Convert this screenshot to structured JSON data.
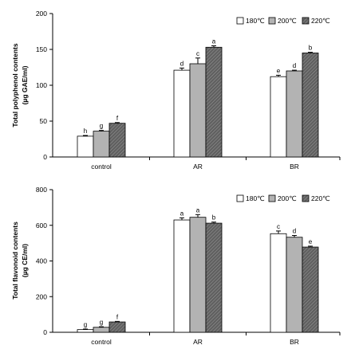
{
  "chart_data": [
    {
      "type": "bar",
      "ylabel_line1": "Total polyphenol contents",
      "ylabel_line2": "(µg GAE/ml)",
      "ylim": [
        0,
        200
      ],
      "yticks": [
        "0",
        "50",
        "100",
        "150",
        "200"
      ],
      "categories": [
        "control",
        "AR",
        "BR"
      ],
      "series": [
        {
          "name": "180℃",
          "values": [
            29,
            121,
            112
          ],
          "errors": [
            1,
            3,
            2
          ],
          "letters": [
            "h",
            "d",
            "e"
          ]
        },
        {
          "name": "200℃",
          "values": [
            36,
            130,
            120
          ],
          "errors": [
            1,
            8,
            1
          ],
          "letters": [
            "g",
            "c",
            "d"
          ]
        },
        {
          "name": "220℃",
          "values": [
            47,
            153,
            145
          ],
          "errors": [
            1,
            2,
            1
          ],
          "letters": [
            "f",
            "a",
            "b"
          ]
        }
      ],
      "legend_position": "top-right",
      "grid": false
    },
    {
      "type": "bar",
      "ylabel_line1": "Total flavonoid contents",
      "ylabel_line2": "(µg CE/ml)",
      "ylim": [
        0,
        800
      ],
      "yticks": [
        "0",
        "200",
        "400",
        "600",
        "800"
      ],
      "categories": [
        "control",
        "AR",
        "BR"
      ],
      "series": [
        {
          "name": "180℃",
          "values": [
            15,
            630,
            553
          ],
          "errors": [
            3,
            12,
            15
          ],
          "letters": [
            "g",
            "a",
            "c"
          ]
        },
        {
          "name": "200℃",
          "values": [
            28,
            645,
            533
          ],
          "errors": [
            3,
            15,
            10
          ],
          "letters": [
            "g",
            "a",
            "d"
          ]
        },
        {
          "name": "220℃",
          "values": [
            58,
            612,
            478
          ],
          "errors": [
            3,
            6,
            5
          ],
          "letters": [
            "f",
            "b",
            "e"
          ]
        }
      ],
      "legend_position": "top-right",
      "grid": false
    }
  ],
  "colors": {
    "series_fill": [
      "#ffffff",
      "#b3b3b3",
      "#606060"
    ],
    "hatch_line": "#9a9a9a",
    "axis": "#000000"
  }
}
